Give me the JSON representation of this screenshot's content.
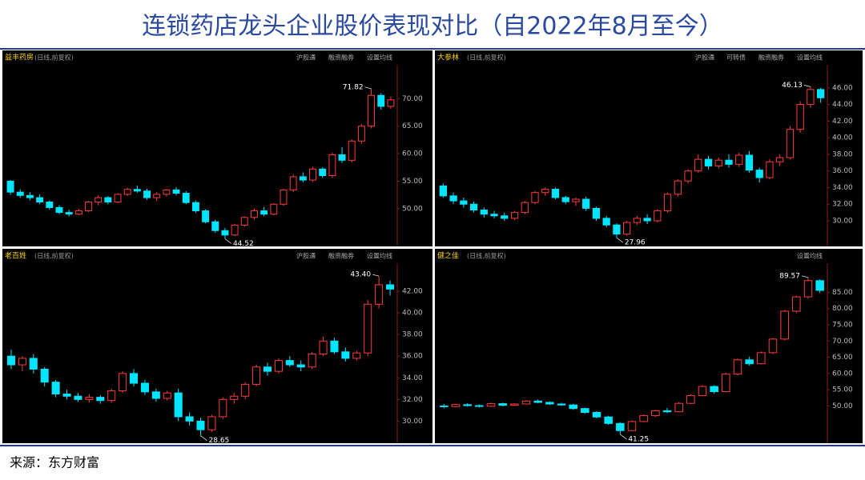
{
  "title": "连锁药店龙头企业股价表现对比（自2022年8月至今）",
  "source": "来源：东方财富",
  "chart_data": [
    {
      "type": "candlestick",
      "title": "益丰药房",
      "subtitle": "(日线,前复权)",
      "buttons": [
        "沪股通",
        "融资融券",
        "设置均线"
      ],
      "up_color": "#ff3b3b",
      "down_color": "#00e5ff",
      "ylim": [
        44,
        75
      ],
      "yticks": [
        {
          "value": 50,
          "label": "50.00"
        },
        {
          "value": 55,
          "label": "55.00"
        },
        {
          "value": 60,
          "label": "60.00"
        },
        {
          "value": 65,
          "label": "65.00"
        },
        {
          "value": 70,
          "label": "70.00"
        }
      ],
      "annotations": [
        71.82,
        44.52
      ],
      "ohlc": [
        [
          55,
          55.2,
          52.5,
          53
        ],
        [
          53,
          53.5,
          52,
          52.4
        ],
        [
          52.4,
          53,
          51.5,
          52
        ],
        [
          52,
          52.6,
          50.8,
          51.2
        ],
        [
          51.2,
          51.5,
          49.8,
          50.2
        ],
        [
          50.2,
          50.6,
          49,
          49.3
        ],
        [
          49.3,
          49.8,
          48.6,
          49
        ],
        [
          49,
          50,
          48.8,
          49.6
        ],
        [
          49.6,
          51.4,
          49.4,
          51.2
        ],
        [
          51.2,
          52.4,
          50.6,
          52
        ],
        [
          52,
          52.3,
          50.8,
          51.2
        ],
        [
          51.2,
          52.8,
          51,
          52.6
        ],
        [
          52.6,
          53.8,
          52.3,
          53.5
        ],
        [
          53.5,
          54.2,
          52.9,
          53.2
        ],
        [
          53.2,
          53.6,
          51.6,
          52
        ],
        [
          52,
          53,
          51.4,
          52.6
        ],
        [
          52.6,
          53.6,
          52.2,
          53.4
        ],
        [
          53.4,
          53.9,
          52.4,
          52.8
        ],
        [
          52.8,
          53.2,
          50.8,
          51.1
        ],
        [
          51.1,
          51.5,
          49.2,
          49.6
        ],
        [
          49.6,
          49.9,
          47.3,
          47.6
        ],
        [
          47.6,
          48,
          45.6,
          46
        ],
        [
          46,
          46.5,
          44.52,
          45.2
        ],
        [
          45.2,
          47.2,
          45,
          47
        ],
        [
          47,
          48.6,
          46.7,
          48.4
        ],
        [
          48.4,
          50,
          48,
          49.6
        ],
        [
          49.6,
          50.3,
          48.6,
          49
        ],
        [
          49,
          51,
          48.8,
          50.8
        ],
        [
          50.8,
          53.6,
          50.5,
          53.4
        ],
        [
          53.4,
          56.2,
          53,
          55.8
        ],
        [
          55.8,
          56.6,
          54.8,
          55.2
        ],
        [
          55.2,
          57.6,
          54.9,
          57.2
        ],
        [
          57.2,
          57.5,
          55.6,
          56
        ],
        [
          56,
          60.2,
          55.6,
          59.8
        ],
        [
          59.8,
          61.2,
          58.3,
          58.8
        ],
        [
          58.8,
          62.6,
          58.4,
          62.3
        ],
        [
          62.3,
          65.4,
          61.8,
          65
        ],
        [
          65,
          71.82,
          64.6,
          70.6
        ],
        [
          70.6,
          71,
          68,
          68.6
        ],
        [
          68.6,
          70.4,
          68.2,
          69.8
        ]
      ]
    },
    {
      "type": "candlestick",
      "title": "大参林",
      "subtitle": "(日线,前复权)",
      "buttons": [
        "沪股通",
        "可转债",
        "融资融券",
        "设置均线"
      ],
      "up_color": "#ff3b3b",
      "down_color": "#00e5ff",
      "ylim": [
        27.5,
        48
      ],
      "yticks": [
        {
          "value": 30,
          "label": "30.00"
        },
        {
          "value": 32,
          "label": "32.00"
        },
        {
          "value": 34,
          "label": "34.00"
        },
        {
          "value": 36,
          "label": "36.00"
        },
        {
          "value": 38,
          "label": "38.00"
        },
        {
          "value": 40,
          "label": "40.00"
        },
        {
          "value": 42,
          "label": "42.00"
        },
        {
          "value": 44,
          "label": "44.00"
        },
        {
          "value": 46,
          "label": "46.00"
        }
      ],
      "annotations": [
        46.13,
        27.96
      ],
      "ohlc": [
        [
          34.2,
          34.5,
          32.8,
          33
        ],
        [
          33,
          33.4,
          32,
          32.4
        ],
        [
          32.4,
          32.8,
          31.6,
          32
        ],
        [
          32,
          32.3,
          31,
          31.3
        ],
        [
          31.3,
          31.6,
          30.4,
          30.8
        ],
        [
          30.8,
          31.2,
          30.3,
          30.6
        ],
        [
          30.6,
          31,
          30,
          30.3
        ],
        [
          30.3,
          31.2,
          30.1,
          31
        ],
        [
          31,
          32.4,
          30.8,
          32.2
        ],
        [
          32.2,
          33.6,
          32,
          33.4
        ],
        [
          33.4,
          34,
          33,
          33.8
        ],
        [
          33.8,
          34,
          32.6,
          32.8
        ],
        [
          32.8,
          33,
          32,
          32.3
        ],
        [
          32.3,
          32.8,
          31.8,
          32.6
        ],
        [
          32.6,
          32.9,
          31.2,
          31.5
        ],
        [
          31.5,
          31.7,
          30,
          30.3
        ],
        [
          30.3,
          30.6,
          29.2,
          29.5
        ],
        [
          29.5,
          29.7,
          27.96,
          28.4
        ],
        [
          28.4,
          30,
          28.2,
          29.8
        ],
        [
          29.8,
          30.6,
          29.5,
          30.3
        ],
        [
          30.3,
          30.8,
          29.6,
          30
        ],
        [
          30,
          31.4,
          29.8,
          31.2
        ],
        [
          31.2,
          33.4,
          31,
          33.2
        ],
        [
          33.2,
          35,
          32.9,
          34.8
        ],
        [
          34.8,
          36.2,
          34.5,
          36
        ],
        [
          36,
          38,
          35.8,
          37.4
        ],
        [
          37.4,
          37.8,
          36.2,
          36.6
        ],
        [
          36.6,
          37.6,
          36.3,
          37.3
        ],
        [
          37.3,
          38,
          36.4,
          36.8
        ],
        [
          36.8,
          38.2,
          36.5,
          37.9
        ],
        [
          37.9,
          38.4,
          35.8,
          36.1
        ],
        [
          36.1,
          36.4,
          34.6,
          35.2
        ],
        [
          35.2,
          37.4,
          35,
          37.1
        ],
        [
          37.1,
          38,
          36.6,
          37.6
        ],
        [
          37.6,
          41.4,
          37.4,
          41
        ],
        [
          41,
          44.4,
          40.6,
          44
        ],
        [
          44,
          46.13,
          43.6,
          45.8
        ],
        [
          45.8,
          46,
          44.2,
          44.8
        ]
      ]
    },
    {
      "type": "candlestick",
      "title": "老百姓",
      "subtitle": "(日线,前复权)",
      "buttons": [
        "沪股通",
        "融资融券",
        "设置均线"
      ],
      "up_color": "#ff3b3b",
      "down_color": "#00e5ff",
      "ylim": [
        28.4,
        44
      ],
      "yticks": [
        {
          "value": 30,
          "label": "30.00"
        },
        {
          "value": 32,
          "label": "32.00"
        },
        {
          "value": 34,
          "label": "34.00"
        },
        {
          "value": 36,
          "label": "36.00"
        },
        {
          "value": 38,
          "label": "38.00"
        },
        {
          "value": 40,
          "label": "40.00"
        },
        {
          "value": 42,
          "label": "42.00"
        }
      ],
      "annotations": [
        {
          "value": 43.4,
          "label": "43.40"
        },
        28.65
      ],
      "ohlc": [
        [
          36,
          36.6,
          34.8,
          35.2
        ],
        [
          35.2,
          36,
          34.6,
          35.8
        ],
        [
          35.8,
          36.2,
          34.4,
          34.8
        ],
        [
          34.8,
          35,
          33.2,
          33.6
        ],
        [
          33.6,
          33.8,
          32.2,
          32.5
        ],
        [
          32.5,
          32.9,
          32,
          32.3
        ],
        [
          32.3,
          32.6,
          31.8,
          32
        ],
        [
          32,
          32.5,
          31.7,
          32.2
        ],
        [
          32.2,
          32.4,
          31.6,
          31.9
        ],
        [
          31.9,
          33,
          31.7,
          32.8
        ],
        [
          32.8,
          34.6,
          32.6,
          34.4
        ],
        [
          34.4,
          34.8,
          33.2,
          33.5
        ],
        [
          33.5,
          33.8,
          32.4,
          32.7
        ],
        [
          32.7,
          33,
          31.8,
          32.1
        ],
        [
          32.1,
          32.8,
          31.9,
          32.6
        ],
        [
          32.6,
          33,
          30,
          30.4
        ],
        [
          30.4,
          30.8,
          29.6,
          30
        ],
        [
          30,
          30.3,
          28.65,
          29.2
        ],
        [
          29.2,
          30.6,
          29,
          30.4
        ],
        [
          30.4,
          32.2,
          30.2,
          32
        ],
        [
          32,
          32.6,
          31.6,
          32.3
        ],
        [
          32.3,
          33.6,
          32,
          33.4
        ],
        [
          33.4,
          35.2,
          33.2,
          35
        ],
        [
          35,
          35.4,
          34.2,
          34.6
        ],
        [
          34.6,
          35.8,
          34.4,
          35.6
        ],
        [
          35.6,
          36,
          35,
          35.2
        ],
        [
          35.2,
          35.6,
          34.6,
          35
        ],
        [
          35,
          36.4,
          34.8,
          36.2
        ],
        [
          36.2,
          37.8,
          36,
          37.4
        ],
        [
          37.4,
          37.7,
          36.2,
          36.4
        ],
        [
          36.4,
          36.8,
          35.5,
          35.8
        ],
        [
          35.8,
          36.5,
          35.6,
          36.3
        ],
        [
          36.3,
          41.2,
          36,
          40.8
        ],
        [
          40.8,
          43.4,
          40.4,
          42.6
        ],
        [
          42.6,
          43,
          41.6,
          42.2
        ]
      ]
    },
    {
      "type": "candlestick",
      "title": "健之佳",
      "subtitle": "(日线,前复权)",
      "buttons": [
        "设置均线"
      ],
      "up_color": "#ff3b3b",
      "down_color": "#00e5ff",
      "ylim": [
        40,
        92
      ],
      "yticks": [
        {
          "value": 50,
          "label": "50.00"
        },
        {
          "value": 55,
          "label": "55.00"
        },
        {
          "value": 60,
          "label": "60.00"
        },
        {
          "value": 65,
          "label": "65.00"
        },
        {
          "value": 70,
          "label": "70.00"
        },
        {
          "value": 75,
          "label": "75.00"
        },
        {
          "value": 80,
          "label": "80.00"
        },
        {
          "value": 85,
          "label": "85.00"
        }
      ],
      "annotations": [
        89.57,
        41.25
      ],
      "ohlc": [
        [
          50,
          50.6,
          49.4,
          49.8
        ],
        [
          49.8,
          50.6,
          49.6,
          50.4
        ],
        [
          50.4,
          50.8,
          49.8,
          50.1
        ],
        [
          50.1,
          50.5,
          49.5,
          49.9
        ],
        [
          49.9,
          51,
          49.7,
          50.7
        ],
        [
          50.7,
          51,
          49.9,
          50.2
        ],
        [
          50.2,
          50.9,
          50,
          50.6
        ],
        [
          50.6,
          51.8,
          50.4,
          51.5
        ],
        [
          51.5,
          52,
          50.8,
          51.1
        ],
        [
          51.1,
          51.4,
          50.3,
          50.6
        ],
        [
          50.6,
          51,
          50,
          50.3
        ],
        [
          50.3,
          50.6,
          48.8,
          49.2
        ],
        [
          49.2,
          49.5,
          47.6,
          48
        ],
        [
          48,
          48.4,
          46.2,
          46.6
        ],
        [
          46.6,
          47,
          44.2,
          44.6
        ],
        [
          44.6,
          45,
          41.25,
          42.4
        ],
        [
          42.4,
          45.6,
          42.2,
          45.2
        ],
        [
          45.2,
          47.4,
          45,
          47
        ],
        [
          47,
          48.8,
          46.6,
          48.5
        ],
        [
          48.5,
          49.4,
          47.8,
          48.2
        ],
        [
          48.2,
          51.2,
          48,
          50.8
        ],
        [
          50.8,
          53.6,
          50.6,
          53.2
        ],
        [
          53.2,
          56.4,
          53,
          56
        ],
        [
          56,
          56.4,
          53.8,
          54.4
        ],
        [
          54.4,
          60.2,
          54.2,
          59.8
        ],
        [
          59.8,
          64.6,
          59.4,
          64.2
        ],
        [
          64.2,
          65.2,
          62.4,
          63
        ],
        [
          63,
          66.8,
          62.8,
          66.4
        ],
        [
          66.4,
          71,
          66,
          70.6
        ],
        [
          70.6,
          79.6,
          70.2,
          79.2
        ],
        [
          79.2,
          84,
          78.6,
          83.6
        ],
        [
          83.6,
          89.57,
          83,
          88.6
        ],
        [
          88.6,
          89,
          84.8,
          85.6
        ]
      ]
    }
  ]
}
